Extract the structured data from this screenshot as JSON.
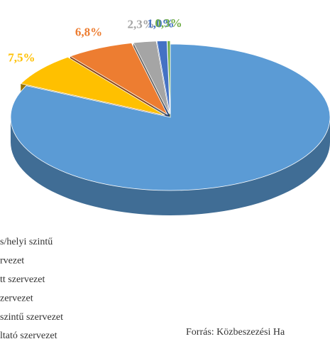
{
  "chart_data": {
    "type": "pie3d",
    "series": [
      {
        "name": "s/helyi szintű",
        "color": "#5b9bd5",
        "value": 82.1,
        "value_label": null
      },
      {
        "name": "rvezet",
        "color": "#ffc000",
        "value": 7.5,
        "value_label": "7,5%"
      },
      {
        "name": "tt szervezet",
        "color": "#ed7d31",
        "value": 6.8,
        "value_label": "6,8%"
      },
      {
        "name": "zervezet",
        "color": "#a5a5a5",
        "value": 2.3,
        "value_label": "2,3%"
      },
      {
        "name": "szintű szervezet",
        "color": "#4472c4",
        "value": 1.0,
        "value_label": "1,0%"
      },
      {
        "name": "ltató szervezet",
        "color": "#70ad47",
        "value": 0.3,
        "value_label": "0,3%"
      }
    ],
    "source": "Forrás: Közbeszezési Ha"
  }
}
